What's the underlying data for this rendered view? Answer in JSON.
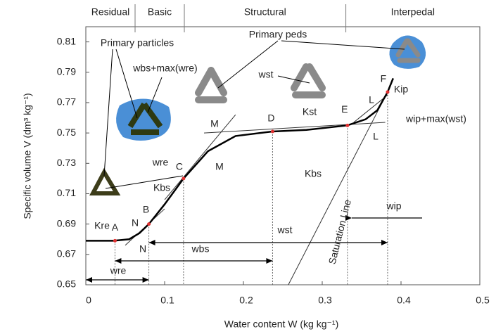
{
  "chart_data": {
    "type": "line",
    "xlabel": "Water content W (kg kg⁻¹)",
    "ylabel": "Specific volume V (dm³ kg⁻¹)",
    "xlim": [
      0,
      0.5
    ],
    "ylim": [
      0.65,
      0.82
    ],
    "xticks": [
      0,
      0.1,
      0.2,
      0.3,
      0.4,
      0.5
    ],
    "yticks": [
      0.65,
      0.67,
      0.69,
      0.71,
      0.73,
      0.75,
      0.77,
      0.79,
      0.81
    ],
    "regions": {
      "labels": [
        "Residual",
        "Basic",
        "Structural",
        "Interpedal"
      ],
      "bounds": [
        0.0625,
        0.125,
        0.33
      ]
    },
    "series": [
      {
        "color": "#000000",
        "x": [
          0,
          0.035,
          0.055,
          0.068,
          0.08,
          0.1,
          0.124,
          0.155,
          0.19,
          0.237,
          0.28,
          0.332,
          0.355,
          0.37,
          0.383,
          0.39
        ],
        "values": [
          0.679,
          0.679,
          0.68,
          0.684,
          0.69,
          0.703,
          0.72,
          0.738,
          0.748,
          0.751,
          0.752,
          0.755,
          0.759,
          0.765,
          0.777,
          0.786
        ]
      }
    ],
    "points": {
      "color": "#e03030",
      "labels": [
        "A",
        "B",
        "C",
        "D",
        "E",
        "F"
      ],
      "x": [
        0.037,
        0.08,
        0.124,
        0.237,
        0.332,
        0.383
      ],
      "values": [
        0.679,
        0.69,
        0.72,
        0.751,
        0.755,
        0.777
      ]
    },
    "reference_lines": [
      {
        "x": [
          0.257,
          0.383
        ],
        "values": [
          0.65,
          0.777
        ]
      },
      {
        "x": [
          0.1,
          0.19
        ],
        "values": [
          0.706,
          0.762
        ]
      },
      {
        "x": [
          0.15,
          0.38
        ],
        "values": [
          0.75,
          0.757
        ]
      },
      {
        "x": [
          0.05,
          0.1
        ],
        "values": [
          0.676,
          0.7
        ]
      },
      {
        "x": [
          0.34,
          0.383
        ],
        "values": [
          0.757,
          0.775
        ]
      }
    ],
    "annotations": [
      "Primary particles",
      "Primary peds",
      "wbs+max(wre)",
      "wst",
      "wre",
      "Kre",
      "N",
      "N",
      "Kbs",
      "M",
      "M",
      "Kst",
      "L",
      "L",
      "Kip",
      "wip+max(wst)",
      "Kbs",
      "Saturation Line",
      "wip",
      "wst",
      "wbs",
      "wre"
    ]
  }
}
